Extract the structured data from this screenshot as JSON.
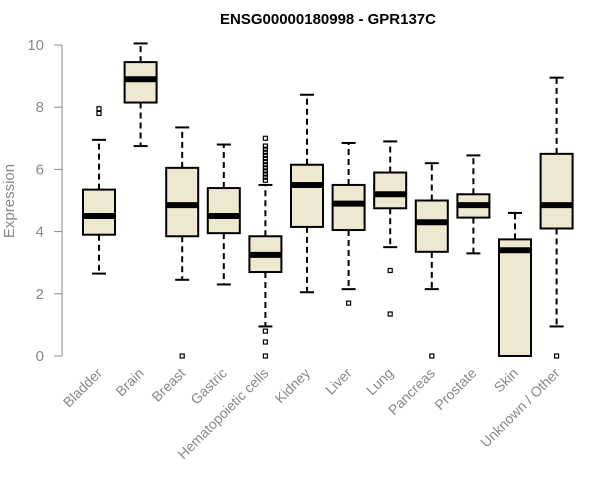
{
  "chart_data": {
    "type": "boxplot",
    "title": "ENSG00000180998 - GPR137C",
    "xlabel": "",
    "ylabel": "Expression",
    "ylim": [
      0,
      10
    ],
    "yticks": [
      0,
      2,
      4,
      6,
      8,
      10
    ],
    "box_fill": "#efe8d0",
    "box_stroke": "#000000",
    "axis_color": "#888888",
    "categories": [
      "Bladder",
      "Brain",
      "Breast",
      "Gastric",
      "Hematopoietic cells",
      "Kidney",
      "Liver",
      "Lung",
      "Pancreas",
      "Prostate",
      "Skin",
      "Unknown / Other"
    ],
    "boxes": [
      {
        "label": "Bladder",
        "whisker_low": 2.65,
        "q1": 3.9,
        "median": 4.5,
        "q3": 5.35,
        "whisker_high": 6.95,
        "outliers": [
          7.8,
          7.95
        ]
      },
      {
        "label": "Brain",
        "whisker_low": 6.75,
        "q1": 8.15,
        "median": 8.9,
        "q3": 9.45,
        "whisker_high": 10.05,
        "outliers": []
      },
      {
        "label": "Breast",
        "whisker_low": 2.45,
        "q1": 3.85,
        "median": 4.85,
        "q3": 6.05,
        "whisker_high": 7.35,
        "outliers": [
          0.0
        ]
      },
      {
        "label": "Gastric",
        "whisker_low": 2.3,
        "q1": 3.95,
        "median": 4.5,
        "q3": 5.4,
        "whisker_high": 6.8,
        "outliers": []
      },
      {
        "label": "Hematopoietic cells",
        "whisker_low": 0.95,
        "q1": 2.7,
        "median": 3.25,
        "q3": 3.85,
        "whisker_high": 5.5,
        "outliers": [
          0.0,
          0.45,
          0.8,
          5.65,
          5.75,
          5.85,
          5.95,
          6.05,
          6.15,
          6.25,
          6.35,
          6.45,
          6.55,
          6.65,
          6.75,
          7.0
        ]
      },
      {
        "label": "Kidney",
        "whisker_low": 2.05,
        "q1": 4.15,
        "median": 5.5,
        "q3": 6.15,
        "whisker_high": 8.4,
        "outliers": []
      },
      {
        "label": "Liver",
        "whisker_low": 2.15,
        "q1": 4.05,
        "median": 4.9,
        "q3": 5.5,
        "whisker_high": 6.85,
        "outliers": [
          1.7
        ]
      },
      {
        "label": "Lung",
        "whisker_low": 3.5,
        "q1": 4.75,
        "median": 5.2,
        "q3": 5.9,
        "whisker_high": 6.9,
        "outliers": [
          1.35,
          2.75
        ]
      },
      {
        "label": "Pancreas",
        "whisker_low": 2.15,
        "q1": 3.35,
        "median": 4.3,
        "q3": 5.0,
        "whisker_high": 6.2,
        "outliers": [
          0.0
        ]
      },
      {
        "label": "Prostate",
        "whisker_low": 3.3,
        "q1": 4.45,
        "median": 4.85,
        "q3": 5.2,
        "whisker_high": 6.45,
        "outliers": []
      },
      {
        "label": "Skin",
        "whisker_low": 0.0,
        "q1": 0.0,
        "median": 3.4,
        "q3": 3.75,
        "whisker_high": 4.6,
        "outliers": []
      },
      {
        "label": "Unknown / Other",
        "whisker_low": 0.95,
        "q1": 4.1,
        "median": 4.85,
        "q3": 6.5,
        "whisker_high": 8.95,
        "outliers": [
          0.0
        ]
      }
    ]
  }
}
